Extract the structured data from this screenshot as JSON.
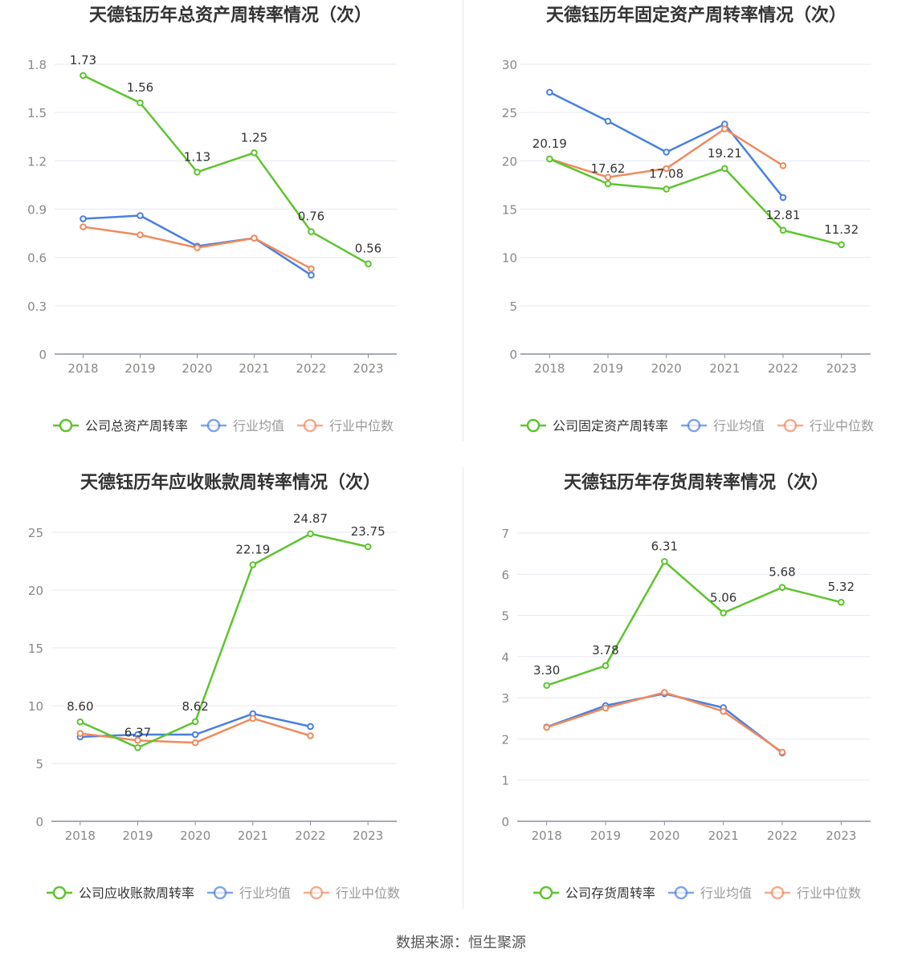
{
  "source": "数据来源：恒生聚源",
  "colors": {
    "company": "#5ec42f",
    "avg": "#4a7fe0",
    "median": "#f08a5d"
  },
  "legend": {
    "avg": "行业均值",
    "median": "行业中位数"
  },
  "chart_data": [
    {
      "type": "line",
      "title": "天德钰历年总资产周转率情况（次）",
      "x": [
        "2018",
        "2019",
        "2020",
        "2021",
        "2022",
        "2023"
      ],
      "ylim": [
        0,
        1.8
      ],
      "yticks": [
        "0",
        "0.3",
        "0.6",
        "0.9",
        "1.2",
        "1.5",
        "1.8"
      ],
      "grid": true,
      "legend_position": "bottom",
      "series": [
        {
          "name": "公司总资产周转率",
          "values": [
            1.73,
            1.56,
            1.13,
            1.25,
            0.76,
            0.56
          ],
          "labels": [
            "1.73",
            "1.56",
            "1.13",
            "1.25",
            "0.76",
            "0.56"
          ]
        },
        {
          "name": "行业均值",
          "values": [
            0.84,
            0.86,
            0.67,
            0.72,
            0.49,
            null
          ]
        },
        {
          "name": "行业中位数",
          "values": [
            0.79,
            0.74,
            0.66,
            0.72,
            0.53,
            null
          ]
        }
      ]
    },
    {
      "type": "line",
      "title": "天德钰历年固定资产周转率情况（次）",
      "x": [
        "2018",
        "2019",
        "2020",
        "2021",
        "2022",
        "2023"
      ],
      "ylim": [
        0,
        30
      ],
      "yticks": [
        "0",
        "5",
        "10",
        "15",
        "20",
        "25",
        "30"
      ],
      "grid": true,
      "legend_position": "bottom",
      "series": [
        {
          "name": "公司固定资产周转率",
          "values": [
            20.19,
            17.62,
            17.08,
            19.21,
            12.81,
            11.32
          ],
          "labels": [
            "20.19",
            "17.62",
            "17.08",
            "19.21",
            "12.81",
            "11.32"
          ]
        },
        {
          "name": "行业均值",
          "values": [
            27.1,
            24.1,
            20.9,
            23.8,
            16.2,
            null
          ]
        },
        {
          "name": "行业中位数",
          "values": [
            20.2,
            18.3,
            19.2,
            23.3,
            19.5,
            null
          ]
        }
      ]
    },
    {
      "type": "line",
      "title": "天德钰历年应收账款周转率情况（次）",
      "x": [
        "2018",
        "2019",
        "2020",
        "2021",
        "2022",
        "2023"
      ],
      "ylim": [
        0,
        25
      ],
      "yticks": [
        "0",
        "5",
        "10",
        "15",
        "20",
        "25"
      ],
      "grid": true,
      "legend_position": "bottom",
      "series": [
        {
          "name": "公司应收账款周转率",
          "values": [
            8.6,
            6.37,
            8.62,
            22.19,
            24.87,
            23.75
          ],
          "labels": [
            "8.60",
            "6.37",
            "8.62",
            "22.19",
            "24.87",
            "23.75"
          ]
        },
        {
          "name": "行业均值",
          "values": [
            7.3,
            7.5,
            7.5,
            9.3,
            8.2,
            null
          ]
        },
        {
          "name": "行业中位数",
          "values": [
            7.6,
            7.0,
            6.8,
            8.9,
            7.4,
            null
          ]
        }
      ]
    },
    {
      "type": "line",
      "title": "天德钰历年存货周转率情况（次）",
      "x": [
        "2018",
        "2019",
        "2020",
        "2021",
        "2022",
        "2023"
      ],
      "ylim": [
        0,
        7
      ],
      "yticks": [
        "0",
        "1",
        "2",
        "3",
        "4",
        "5",
        "6",
        "7"
      ],
      "grid": true,
      "legend_position": "bottom",
      "series": [
        {
          "name": "公司存货周转率",
          "values": [
            3.3,
            3.78,
            6.31,
            5.06,
            5.68,
            5.32
          ],
          "labels": [
            "3.30",
            "3.78",
            "6.31",
            "5.06",
            "5.68",
            "5.32"
          ]
        },
        {
          "name": "行业均值",
          "values": [
            2.29,
            2.81,
            3.1,
            2.76,
            1.66,
            null
          ]
        },
        {
          "name": "行业中位数",
          "values": [
            2.28,
            2.75,
            3.13,
            2.67,
            1.68,
            null
          ]
        }
      ]
    }
  ]
}
